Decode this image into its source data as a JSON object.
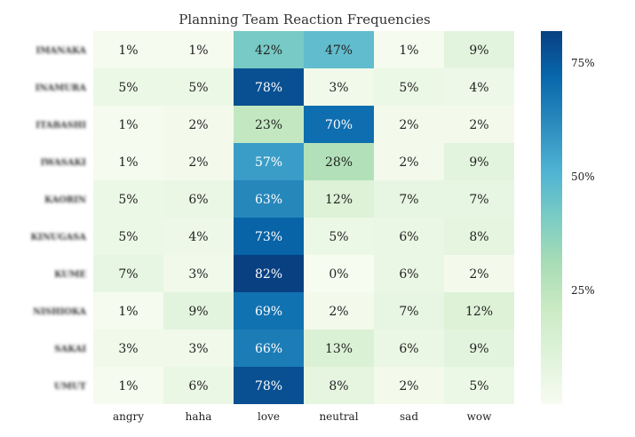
{
  "chart_data": {
    "type": "heatmap",
    "title": "Planning Team Reaction Frequencies",
    "columns": [
      "angry",
      "haha",
      "love",
      "neutral",
      "sad",
      "wow"
    ],
    "rows": [
      "IMANAKA",
      "INAMURA",
      "ITABASHI",
      "IWASAKI",
      "KAORIN",
      "KINUGASA",
      "KUME",
      "NISHIOKA",
      "SAKAI",
      "UMUT"
    ],
    "values": [
      [
        1,
        1,
        42,
        47,
        1,
        9
      ],
      [
        5,
        5,
        78,
        3,
        5,
        4
      ],
      [
        1,
        2,
        23,
        70,
        2,
        2
      ],
      [
        1,
        2,
        57,
        28,
        2,
        9
      ],
      [
        5,
        6,
        63,
        12,
        7,
        7
      ],
      [
        5,
        4,
        73,
        5,
        6,
        8
      ],
      [
        7,
        3,
        82,
        0,
        6,
        2
      ],
      [
        1,
        9,
        69,
        2,
        7,
        12
      ],
      [
        3,
        3,
        66,
        13,
        6,
        9
      ],
      [
        1,
        6,
        78,
        8,
        2,
        5
      ]
    ],
    "value_suffix": "%",
    "colorbar": {
      "range": [
        0,
        82
      ],
      "ticks": [
        25,
        50,
        75
      ],
      "tick_labels": [
        "25%",
        "50%",
        "75%"
      ]
    },
    "colormap": "GnBu",
    "row_labels_blurred": true
  }
}
